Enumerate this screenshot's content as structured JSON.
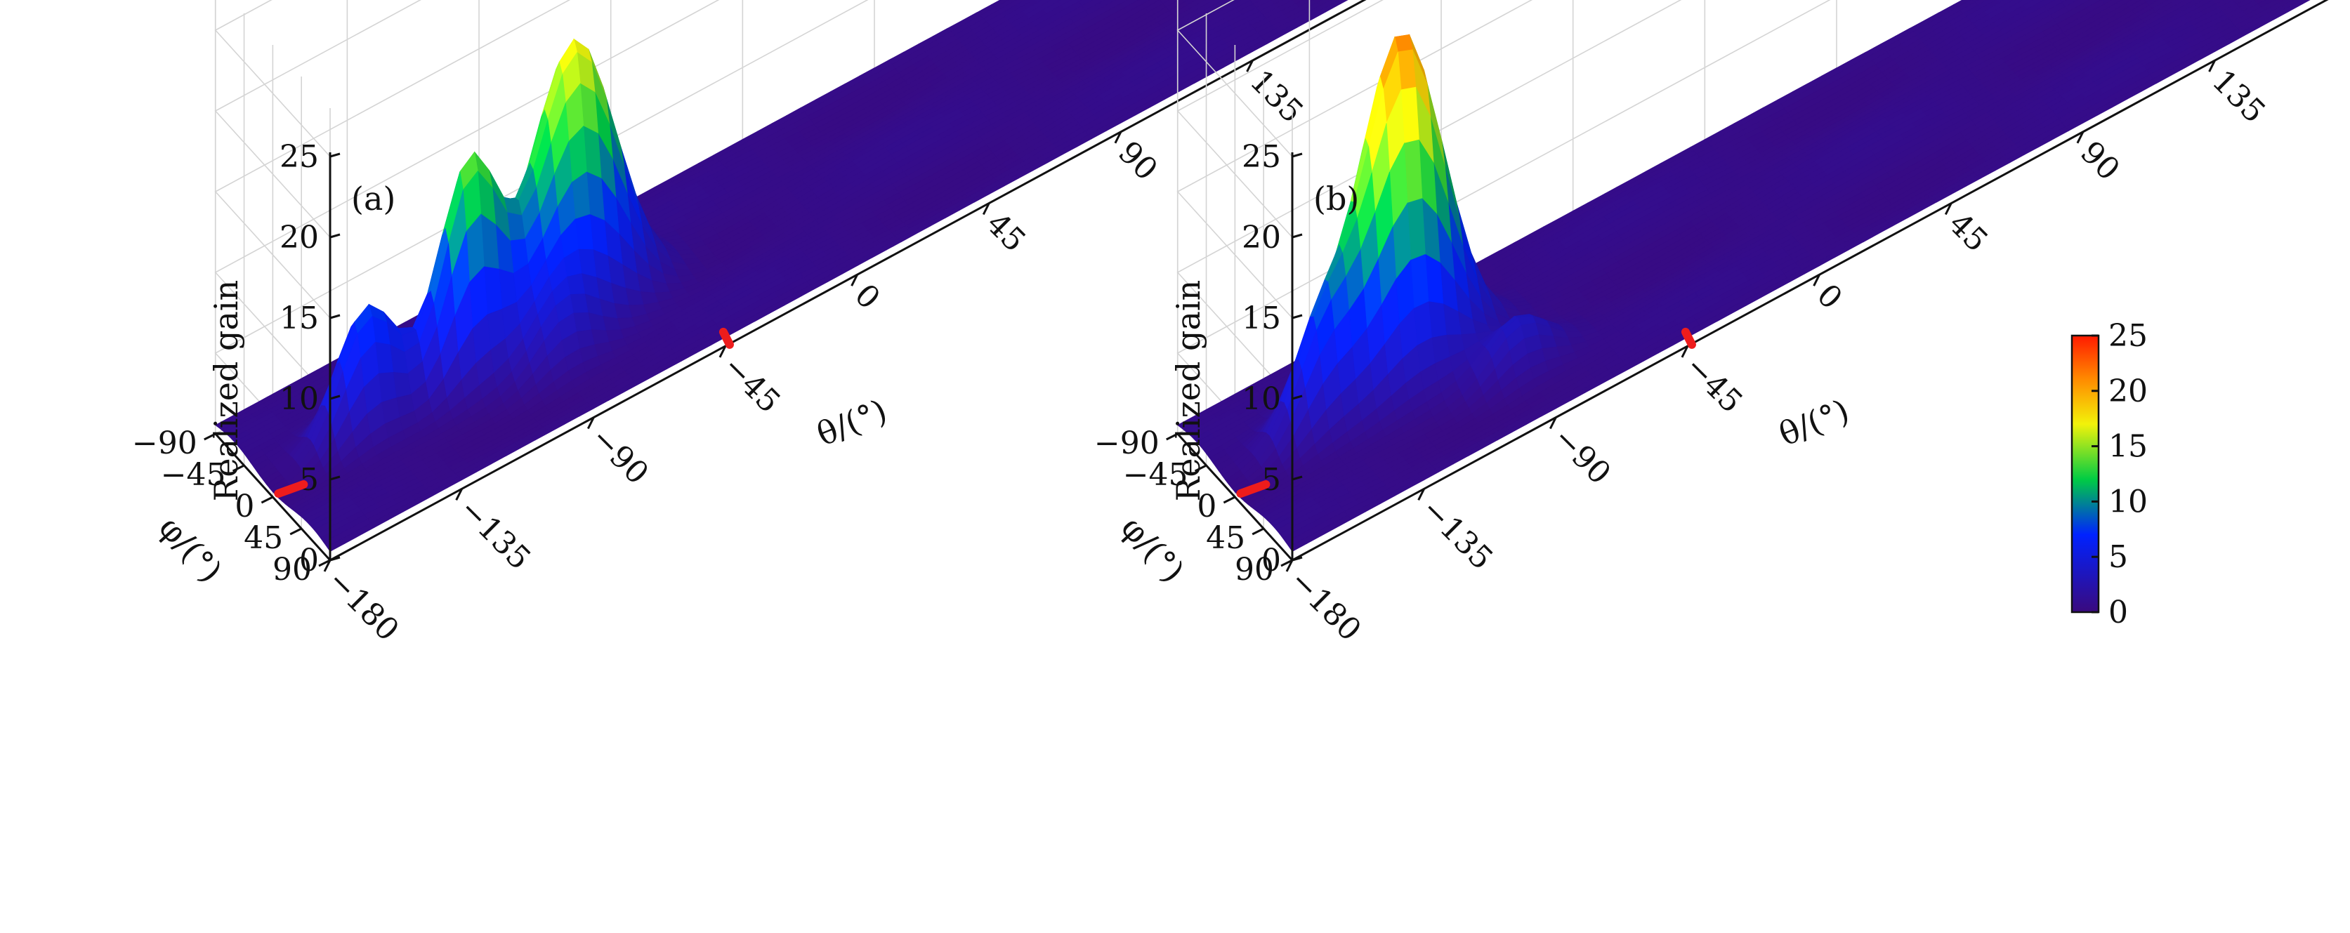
{
  "chart_data": [
    {
      "type": "surface",
      "panel_label": "(a)",
      "zlabel": "Realized gain",
      "xlabel": "θ/(°)",
      "ylabel": "φ/(°)",
      "theta_ticks": [
        -180,
        -135,
        -90,
        -45,
        0,
        45,
        90,
        135
      ],
      "phi_ticks": [
        -90,
        -45,
        0,
        45,
        90
      ],
      "z_ticks": [
        0,
        5,
        10,
        15,
        20,
        25
      ],
      "theta_tick_labels": [
        "−180",
        "−135",
        "−90",
        "−45",
        "0",
        "45",
        "90",
        "135"
      ],
      "phi_tick_labels": [
        "−90",
        "−45",
        "0",
        "45",
        "90"
      ],
      "z_tick_labels": [
        "0",
        "5",
        "10",
        "15",
        "20",
        "25"
      ],
      "xlim": [
        -180,
        180
      ],
      "ylim": [
        -90,
        90
      ],
      "zlim": [
        0,
        25
      ],
      "red_markers": {
        "theta": -45,
        "phi": 0
      },
      "peaks": [
        {
          "theta": -75,
          "phi": -10,
          "gain": 17
        },
        {
          "theta": -112,
          "phi": -5,
          "gain": 13
        },
        {
          "theta": -146,
          "phi": -10,
          "gain": 7.5
        },
        {
          "theta": -88,
          "phi": 28,
          "gain": 3
        }
      ]
    },
    {
      "type": "surface",
      "panel_label": "(b)",
      "zlabel": "Realized gain",
      "xlabel": "θ/(°)",
      "ylabel": "φ/(°)",
      "theta_ticks": [
        -180,
        -135,
        -90,
        -45,
        0,
        45,
        90,
        135
      ],
      "phi_ticks": [
        -90,
        -45,
        0,
        45,
        90
      ],
      "z_ticks": [
        0,
        5,
        10,
        15,
        20,
        25
      ],
      "theta_tick_labels": [
        "−180",
        "−135",
        "−90",
        "−45",
        "0",
        "45",
        "90",
        "135"
      ],
      "phi_tick_labels": [
        "−90",
        "−45",
        "0",
        "45",
        "90"
      ],
      "z_tick_labels": [
        "0",
        "5",
        "10",
        "15",
        "20",
        "25"
      ],
      "xlim": [
        -180,
        180
      ],
      "ylim": [
        -90,
        90
      ],
      "zlim": [
        0,
        25
      ],
      "red_markers": {
        "theta": -45,
        "phi": 0
      },
      "peaks": [
        {
          "theta": -118,
          "phi": -25,
          "gain": 21
        },
        {
          "theta": -147,
          "phi": -15,
          "gain": 6
        },
        {
          "theta": -90,
          "phi": 30,
          "gain": 3
        }
      ]
    }
  ],
  "colorbar": {
    "ticks": [
      0,
      5,
      10,
      15,
      20,
      25
    ],
    "tick_labels": [
      "0",
      "5",
      "10",
      "15",
      "20",
      "25"
    ],
    "colormap": [
      {
        "v": 0,
        "color": "#3a0a7e"
      },
      {
        "v": 7,
        "color": "#0022ff"
      },
      {
        "v": 12,
        "color": "#00cc44"
      },
      {
        "v": 17,
        "color": "#f2f20a"
      },
      {
        "v": 21,
        "color": "#ff8c00"
      },
      {
        "v": 25,
        "color": "#ff1a00"
      }
    ]
  }
}
